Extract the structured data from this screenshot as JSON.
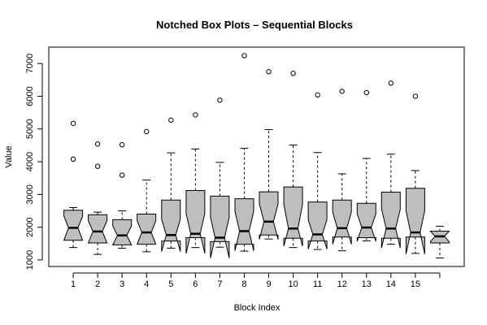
{
  "chart_data": {
    "type": "box",
    "title": "Notched Box Plots – Sequential Blocks",
    "xlabel": "Block Index",
    "ylabel": "Value",
    "categories": [
      "1",
      "2",
      "3",
      "4",
      "5",
      "6",
      "7",
      "8",
      "9",
      "10",
      "11",
      "12",
      "13",
      "14",
      "15",
      ""
    ],
    "y_ticks": [
      1000,
      2000,
      3000,
      4000,
      5000,
      6000,
      7000
    ],
    "ylim": [
      800,
      7500
    ],
    "xlim": [
      0,
      17
    ],
    "colors": {
      "box_fill": "#bebebe",
      "stroke": "#000000",
      "background": "#ffffff"
    },
    "boxes": [
      {
        "whisker_low": 1380,
        "q1": 1600,
        "median": 1980,
        "q3": 2520,
        "whisker_high": 2600,
        "notch_low": 1600,
        "notch_high": 2340,
        "outliers": [
          4080,
          5170
        ]
      },
      {
        "whisker_low": 1170,
        "q1": 1520,
        "median": 1870,
        "q3": 2380,
        "whisker_high": 2460,
        "notch_low": 1520,
        "notch_high": 2200,
        "outliers": [
          3860,
          4540
        ]
      },
      {
        "whisker_low": 1360,
        "q1": 1460,
        "median": 1750,
        "q3": 2230,
        "whisker_high": 2500,
        "notch_low": 1460,
        "notch_high": 2040,
        "outliers": [
          3590,
          4520
        ]
      },
      {
        "whisker_low": 1250,
        "q1": 1480,
        "median": 1840,
        "q3": 2400,
        "whisker_high": 3440,
        "notch_low": 1480,
        "notch_high": 2200,
        "outliers": [
          4920
        ]
      },
      {
        "whisker_low": 1360,
        "q1": 1580,
        "median": 1760,
        "q3": 2830,
        "whisker_high": 4270,
        "notch_low": 1260,
        "notch_high": 2250,
        "outliers": [
          5270
        ]
      },
      {
        "whisker_low": 1380,
        "q1": 1680,
        "median": 1800,
        "q3": 3120,
        "whisker_high": 4390,
        "notch_low": 1200,
        "notch_high": 2420,
        "outliers": [
          5430
        ]
      },
      {
        "whisker_low": 1390,
        "q1": 1560,
        "median": 1680,
        "q3": 2950,
        "whisker_high": 3980,
        "notch_low": 1060,
        "notch_high": 2300,
        "outliers": [
          5880
        ]
      },
      {
        "whisker_low": 1270,
        "q1": 1480,
        "median": 1880,
        "q3": 2870,
        "whisker_high": 4410,
        "notch_low": 1280,
        "notch_high": 2480,
        "outliers": [
          7240
        ]
      },
      {
        "whisker_low": 1640,
        "q1": 1760,
        "median": 2170,
        "q3": 3080,
        "whisker_high": 4980,
        "notch_low": 1630,
        "notch_high": 2710,
        "outliers": [
          6750
        ]
      },
      {
        "whisker_low": 1380,
        "q1": 1660,
        "median": 1960,
        "q3": 3230,
        "whisker_high": 4510,
        "notch_low": 1420,
        "notch_high": 2700,
        "outliers": [
          6700
        ]
      },
      {
        "whisker_low": 1320,
        "q1": 1580,
        "median": 1780,
        "q3": 2770,
        "whisker_high": 4280,
        "notch_low": 1330,
        "notch_high": 2230,
        "outliers": [
          6040
        ]
      },
      {
        "whisker_low": 1280,
        "q1": 1700,
        "median": 1970,
        "q3": 2830,
        "whisker_high": 3630,
        "notch_low": 1480,
        "notch_high": 2460,
        "outliers": [
          6150
        ]
      },
      {
        "whisker_low": 1580,
        "q1": 1680,
        "median": 1990,
        "q3": 2730,
        "whisker_high": 4100,
        "notch_low": 1570,
        "notch_high": 2410,
        "outliers": [
          6110
        ]
      },
      {
        "whisker_low": 1480,
        "q1": 1660,
        "median": 1960,
        "q3": 3070,
        "whisker_high": 4230,
        "notch_low": 1370,
        "notch_high": 2550,
        "outliers": [
          6400
        ]
      },
      {
        "whisker_low": 1200,
        "q1": 1700,
        "median": 1840,
        "q3": 3190,
        "whisker_high": 3730,
        "notch_low": 1180,
        "notch_high": 2500,
        "outliers": [
          6000
        ]
      },
      {
        "whisker_low": 1060,
        "q1": 1520,
        "median": 1720,
        "q3": 1880,
        "whisker_high": 2030,
        "notch_low": 1560,
        "notch_high": 1880,
        "outliers": []
      }
    ]
  }
}
